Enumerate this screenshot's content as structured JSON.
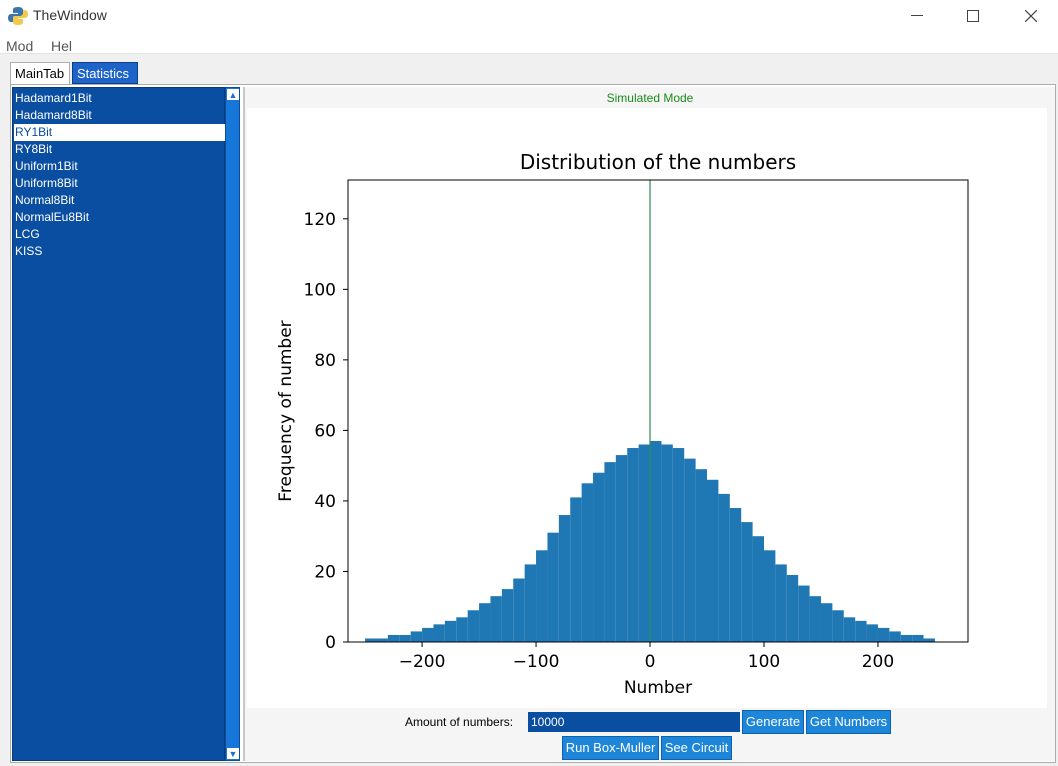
{
  "window": {
    "title": "TheWindow",
    "controls": {
      "minimize": "—",
      "maximize": "☐",
      "close": "✕"
    }
  },
  "menu": {
    "items": [
      "Mod",
      "Hel"
    ]
  },
  "tabs": [
    {
      "label": "MainTab",
      "active": true
    },
    {
      "label": "Statistics",
      "active": false
    }
  ],
  "generators": {
    "items": [
      "Hadamard1Bit",
      "Hadamard8Bit",
      "RY1Bit",
      "RY8Bit",
      "Uniform1Bit",
      "Uniform8Bit",
      "Normal8Bit",
      "NormalEu8Bit",
      "LCG",
      "KISS"
    ],
    "selected": "RY1Bit"
  },
  "status": {
    "mode": "Simulated Mode"
  },
  "controls": {
    "amount_label": "Amount of numbers:",
    "amount_value": "10000",
    "generate_label": "Generate",
    "get_numbers_label": "Get Numbers",
    "run_box_muller_label": "Run Box-Muller",
    "see_circuit_label": "See Circuit"
  },
  "colors": {
    "bar": "#1f77b4",
    "spike": "#2e8b57",
    "listbox": "#0a4ea2",
    "button": "#1e86d8",
    "status_text": "#1a8a1a"
  },
  "chart_data": {
    "type": "bar",
    "title": "Distribution of the numbers",
    "xlabel": "Number",
    "ylabel": "Frequency of number",
    "xlim": [
      -265,
      279
    ],
    "ylim": [
      0,
      131
    ],
    "xticks": [
      -200,
      -100,
      0,
      100,
      200
    ],
    "xtick_labels": [
      "−200",
      "−100",
      "0",
      "100",
      "200"
    ],
    "yticks": [
      0,
      20,
      40,
      60,
      80,
      100,
      120
    ],
    "ytick_labels": [
      "0",
      "20",
      "40",
      "60",
      "80",
      "100",
      "120"
    ],
    "categories": [
      -245,
      -235,
      -225,
      -215,
      -205,
      -195,
      -185,
      -175,
      -165,
      -155,
      -145,
      -135,
      -125,
      -115,
      -105,
      -95,
      -85,
      -75,
      -65,
      -55,
      -45,
      -35,
      -25,
      -15,
      -5,
      5,
      15,
      25,
      35,
      45,
      55,
      65,
      75,
      85,
      95,
      105,
      115,
      125,
      135,
      145,
      155,
      165,
      175,
      185,
      195,
      205,
      215,
      225,
      235,
      245
    ],
    "values": [
      1,
      1,
      2,
      2,
      3,
      4,
      5,
      6,
      7,
      9,
      11,
      13,
      15,
      18,
      22,
      26,
      31,
      36,
      41,
      45,
      48,
      51,
      53,
      55,
      56,
      57,
      56,
      55,
      52,
      49,
      46,
      42,
      38,
      34,
      30,
      26,
      22,
      19,
      16,
      13,
      11,
      9,
      7,
      6,
      5,
      4,
      3,
      2,
      2,
      1
    ],
    "spike": {
      "x": 0,
      "value": 131
    }
  }
}
